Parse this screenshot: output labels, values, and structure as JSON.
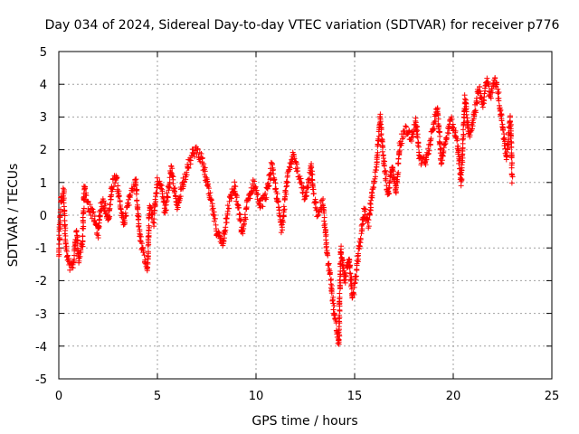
{
  "chart_data": {
    "type": "scatter",
    "title": "Day 034 of 2024, Sidereal Day-to-day VTEC variation (SDTVAR) for receiver p776",
    "xlabel": "GPS time / hours",
    "ylabel": "SDTVAR / TECUs",
    "xlim": [
      0,
      25
    ],
    "ylim": [
      -5,
      5
    ],
    "xticks": [
      "0",
      "5",
      "10",
      "15",
      "20",
      "25"
    ],
    "yticks": [
      "5",
      "4",
      "3",
      "2",
      "1",
      "0",
      "-1",
      "-2",
      "-3",
      "-4",
      "-5"
    ],
    "grid": true,
    "marker": "plus",
    "series": [
      {
        "name": "SDTVAR",
        "color": "#ff0000",
        "trend": [
          [
            0.0,
            -1.2
          ],
          [
            0.1,
            0.4
          ],
          [
            0.25,
            0.7
          ],
          [
            0.35,
            -0.9
          ],
          [
            0.5,
            -1.5
          ],
          [
            0.7,
            -1.6
          ],
          [
            0.9,
            -0.5
          ],
          [
            1.0,
            -1.4
          ],
          [
            1.2,
            -0.8
          ],
          [
            1.3,
            0.9
          ],
          [
            1.5,
            0.3
          ],
          [
            1.8,
            -0.1
          ],
          [
            2.0,
            -0.6
          ],
          [
            2.1,
            0.2
          ],
          [
            2.3,
            0.4
          ],
          [
            2.5,
            -0.2
          ],
          [
            2.7,
            0.9
          ],
          [
            2.9,
            1.2
          ],
          [
            3.1,
            0.4
          ],
          [
            3.3,
            -0.3
          ],
          [
            3.6,
            0.6
          ],
          [
            3.9,
            1.0
          ],
          [
            4.1,
            -0.6
          ],
          [
            4.3,
            -1.2
          ],
          [
            4.5,
            -1.7
          ],
          [
            4.6,
            0.3
          ],
          [
            4.8,
            -0.2
          ],
          [
            5.0,
            1.0
          ],
          [
            5.2,
            0.8
          ],
          [
            5.4,
            0.1
          ],
          [
            5.7,
            1.4
          ],
          [
            6.0,
            0.2
          ],
          [
            6.2,
            0.8
          ],
          [
            6.5,
            1.4
          ],
          [
            6.8,
            1.9
          ],
          [
            7.0,
            2.0
          ],
          [
            7.3,
            1.6
          ],
          [
            7.5,
            1.0
          ],
          [
            7.8,
            0.2
          ],
          [
            8.0,
            -0.5
          ],
          [
            8.3,
            -0.9
          ],
          [
            8.6,
            0.3
          ],
          [
            8.9,
            0.9
          ],
          [
            9.1,
            0.2
          ],
          [
            9.3,
            -0.6
          ],
          [
            9.6,
            0.5
          ],
          [
            9.9,
            1.0
          ],
          [
            10.2,
            0.3
          ],
          [
            10.5,
            0.6
          ],
          [
            10.8,
            1.5
          ],
          [
            11.1,
            0.4
          ],
          [
            11.3,
            -0.4
          ],
          [
            11.6,
            1.2
          ],
          [
            11.9,
            1.8
          ],
          [
            12.2,
            1.2
          ],
          [
            12.5,
            0.5
          ],
          [
            12.8,
            1.5
          ],
          [
            12.9,
            0.7
          ],
          [
            13.1,
            0.1
          ],
          [
            13.4,
            0.4
          ],
          [
            13.6,
            -1.2
          ],
          [
            13.8,
            -2.0
          ],
          [
            14.0,
            -3.2
          ],
          [
            14.2,
            -3.9
          ],
          [
            14.3,
            -1.0
          ],
          [
            14.5,
            -2.0
          ],
          [
            14.7,
            -1.3
          ],
          [
            14.9,
            -2.5
          ],
          [
            15.1,
            -1.7
          ],
          [
            15.3,
            -0.7
          ],
          [
            15.5,
            0.2
          ],
          [
            15.7,
            -0.3
          ],
          [
            15.9,
            0.8
          ],
          [
            16.1,
            1.4
          ],
          [
            16.3,
            3.0
          ],
          [
            16.5,
            1.5
          ],
          [
            16.7,
            0.6
          ],
          [
            16.9,
            1.5
          ],
          [
            17.1,
            0.7
          ],
          [
            17.3,
            2.2
          ],
          [
            17.6,
            2.6
          ],
          [
            17.9,
            2.4
          ],
          [
            18.1,
            2.9
          ],
          [
            18.3,
            1.7
          ],
          [
            18.6,
            1.6
          ],
          [
            18.9,
            2.4
          ],
          [
            19.2,
            3.3
          ],
          [
            19.4,
            1.6
          ],
          [
            19.6,
            2.3
          ],
          [
            19.9,
            2.9
          ],
          [
            20.2,
            2.3
          ],
          [
            20.4,
            1.0
          ],
          [
            20.6,
            3.6
          ],
          [
            20.8,
            2.4
          ],
          [
            21.0,
            2.8
          ],
          [
            21.3,
            3.9
          ],
          [
            21.5,
            3.4
          ],
          [
            21.7,
            4.1
          ],
          [
            21.9,
            3.6
          ],
          [
            22.1,
            4.2
          ],
          [
            22.3,
            3.6
          ],
          [
            22.5,
            2.7
          ],
          [
            22.7,
            1.8
          ],
          [
            22.9,
            3.0
          ],
          [
            23.0,
            1.0
          ]
        ]
      }
    ]
  }
}
